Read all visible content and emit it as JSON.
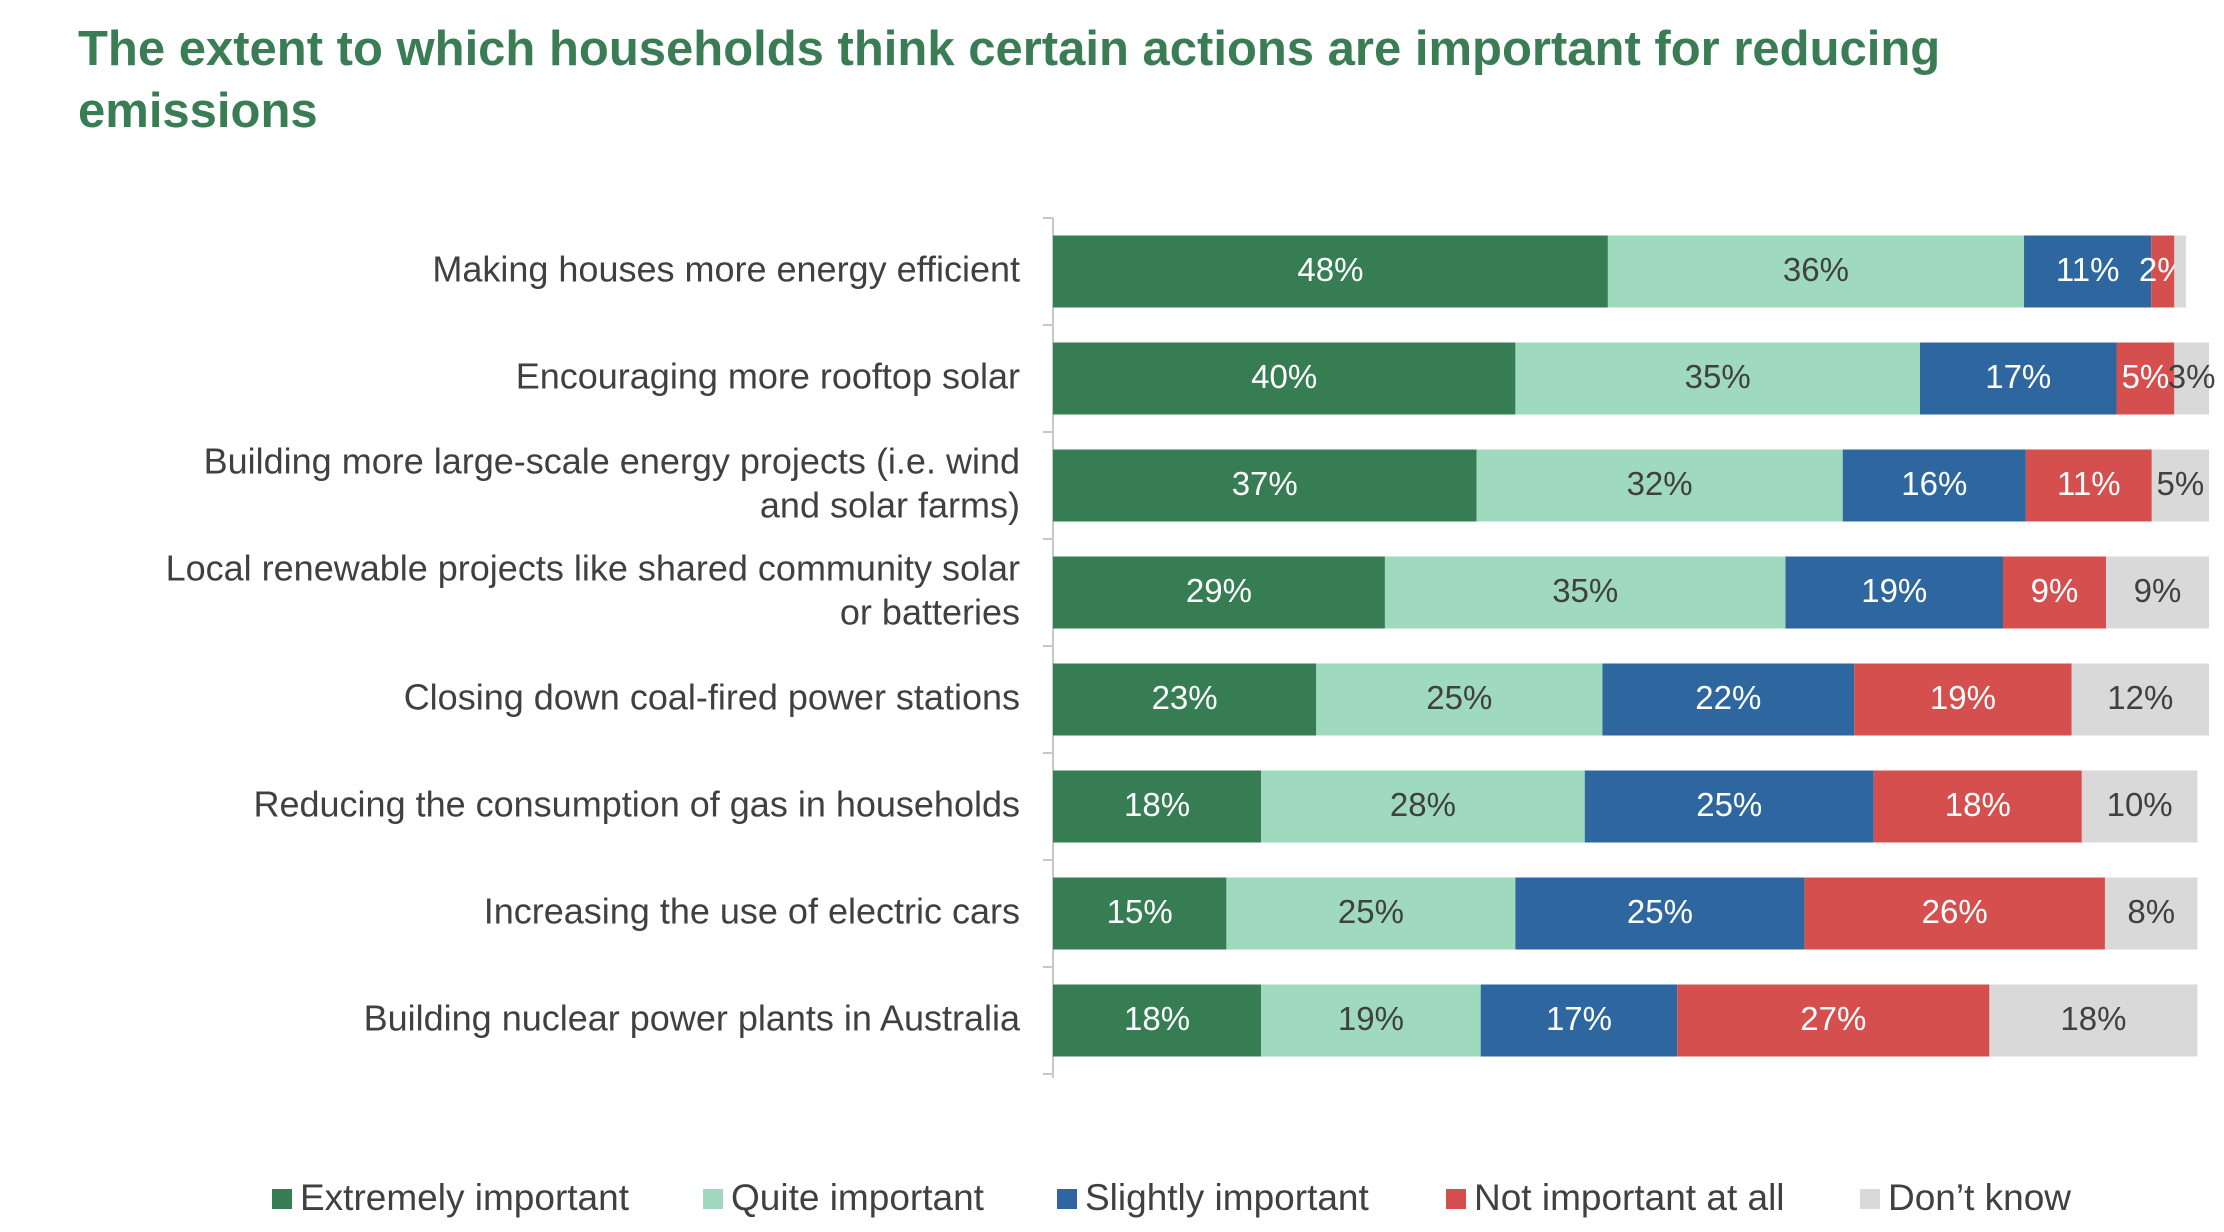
{
  "title": "The extent to which households think certain actions are important for reducing emissions",
  "colors": {
    "title": "#3a7d55",
    "axis": "#c8c8c8",
    "label_text": "#404040"
  },
  "chart_data": {
    "type": "bar",
    "orientation": "horizontal",
    "stacked": true,
    "title": "The extent to which households think certain actions are important for reducing emissions",
    "categories": [
      "Making houses more energy efficient",
      "Encouraging more rooftop solar",
      "Building more large-scale energy projects (i.e. wind and solar farms)",
      "Local renewable projects like shared community solar or batteries",
      "Closing down coal-fired power stations",
      "Reducing the consumption of gas in households",
      "Increasing the use of electric cars",
      "Building nuclear power plants in Australia"
    ],
    "category_lines": [
      [
        "Making houses more energy efficient"
      ],
      [
        "Encouraging more rooftop solar"
      ],
      [
        "Building more large-scale energy projects (i.e. wind",
        "and solar farms)"
      ],
      [
        "Local renewable projects like shared community solar",
        "or batteries"
      ],
      [
        "Closing down coal-fired power stations"
      ],
      [
        "Reducing the consumption of gas in households"
      ],
      [
        "Increasing the use of electric cars"
      ],
      [
        "Building nuclear power plants in Australia"
      ]
    ],
    "series": [
      {
        "name": "Extremely important",
        "color": "#367d54",
        "label_color": "#ffffff",
        "values": [
          48,
          40,
          37,
          29,
          23,
          18,
          15,
          18
        ]
      },
      {
        "name": "Quite important",
        "color": "#9fd9be",
        "label_color": "#404040",
        "values": [
          36,
          35,
          32,
          35,
          25,
          28,
          25,
          19
        ]
      },
      {
        "name": "Slightly important",
        "color": "#2e67a0",
        "label_color": "#ffffff",
        "values": [
          11,
          17,
          16,
          19,
          22,
          25,
          25,
          17
        ]
      },
      {
        "name": "Not important at all",
        "color": "#d64f4f",
        "label_color": "#ffffff",
        "values": [
          2,
          5,
          11,
          9,
          19,
          18,
          26,
          27
        ]
      },
      {
        "name": "Don’t know",
        "color": "#d9d9d9",
        "label_color": "#404040",
        "values": [
          1,
          3,
          5,
          9,
          12,
          10,
          8,
          18
        ]
      }
    ],
    "value_labels": [
      [
        "48%",
        "36%",
        "11%",
        "2%",
        ""
      ],
      [
        "40%",
        "35%",
        "17%",
        "5%",
        "3%"
      ],
      [
        "37%",
        "32%",
        "16%",
        "11%",
        "5%"
      ],
      [
        "29%",
        "35%",
        "19%",
        "9%",
        "9%"
      ],
      [
        "23%",
        "25%",
        "22%",
        "19%",
        "12%"
      ],
      [
        "18%",
        "28%",
        "25%",
        "18%",
        "10%"
      ],
      [
        "15%",
        "25%",
        "25%",
        "26%",
        "8%"
      ],
      [
        "18%",
        "19%",
        "17%",
        "27%",
        "18%"
      ]
    ],
    "unit": "%",
    "xlim": [
      0,
      100
    ],
    "legend_position": "bottom",
    "grid": false
  }
}
